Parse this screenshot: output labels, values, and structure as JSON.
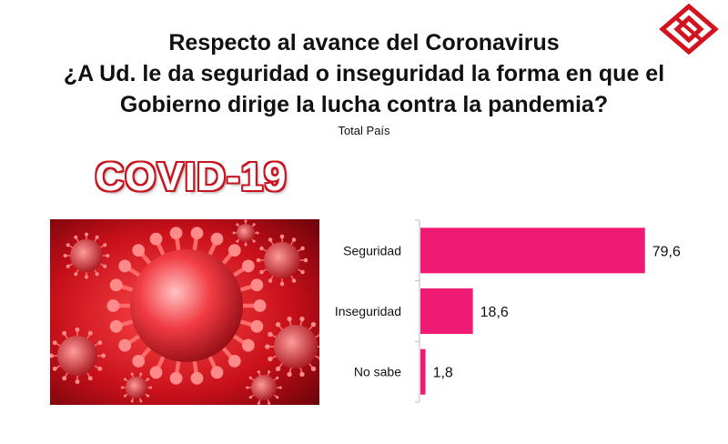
{
  "header": {
    "title_lines": [
      "Respecto al avance del Coronavirus",
      "¿A Ud. le da seguridad o inseguridad la forma en que el",
      "Gobierno dirige la lucha contra la pandemia?"
    ],
    "subtitle": "Total País"
  },
  "image": {
    "label": "COVID-19"
  },
  "colors": {
    "bar": "#ee1a74",
    "label_red": "#c8141e",
    "logo": "#d1141f"
  },
  "chart_data": {
    "type": "bar",
    "orientation": "horizontal",
    "categories": [
      "Seguridad",
      "Inseguridad",
      "No sabe"
    ],
    "values": [
      79.6,
      18.6,
      1.8
    ],
    "value_labels": [
      "79,6",
      "18,6",
      "1,8"
    ],
    "xlim": [
      0,
      100
    ],
    "grid": false,
    "legend": "none"
  }
}
